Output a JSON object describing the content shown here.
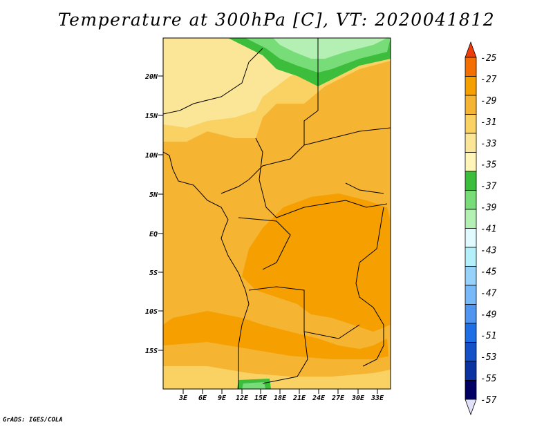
{
  "title": "Temperature at 300hPa [C], VT: 2020041812",
  "footer": "GrADS: IGES/COLA",
  "lat_labels": [
    "20N",
    "15N",
    "10N",
    "5N",
    "EQ",
    "5S",
    "10S",
    "15S"
  ],
  "lon_labels": [
    "3E",
    "6E",
    "9E",
    "12E",
    "15E",
    "18E",
    "21E",
    "24E",
    "27E",
    "30E",
    "33E"
  ],
  "colorbar": {
    "labels": [
      "-25",
      "-27",
      "-29",
      "-31",
      "-33",
      "-35",
      "-37",
      "-39",
      "-41",
      "-43",
      "-45",
      "-47",
      "-49",
      "-51",
      "-53",
      "-55",
      "-57"
    ],
    "colors": [
      "#f03c0a",
      "#f56e00",
      "#f5a000",
      "#f5b432",
      "#fad264",
      "#fae696",
      "#fff5b9",
      "#3cbe3c",
      "#78dc78",
      "#b4f0b4",
      "#e1faff",
      "#b4f0fa",
      "#96d2fa",
      "#78b9fa",
      "#5096f0",
      "#1e6ee6",
      "#1450c8",
      "#0a32a0",
      "#000064",
      "#e1e1fa"
    ]
  }
}
